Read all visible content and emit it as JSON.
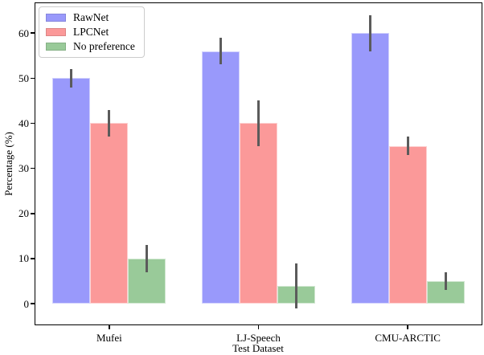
{
  "chart_data": {
    "type": "bar",
    "xlabel": "Test Dataset",
    "ylabel": "Percentage (%)",
    "categories": [
      "Mufei",
      "LJ-Speech",
      "CMU-ARCTIC"
    ],
    "series": [
      {
        "name": "RawNet",
        "color": "#9999fb",
        "values": [
          50,
          56,
          60
        ],
        "errors": [
          2,
          3,
          4
        ]
      },
      {
        "name": "LPCNet",
        "color": "#fb9999",
        "values": [
          40,
          40,
          35
        ],
        "errors": [
          3,
          5,
          2
        ]
      },
      {
        "name": "No preference",
        "color": "#99ca99",
        "values": [
          10,
          4,
          5
        ],
        "errors": [
          3,
          5,
          2
        ]
      }
    ],
    "yticks": [
      0,
      10,
      20,
      30,
      40,
      50,
      60
    ],
    "ylim": [
      -4.8,
      66.8
    ],
    "grid": false,
    "legend_position": "upper-left",
    "error_bar_color": "#5b5b5b",
    "axis_color": "#000000"
  }
}
